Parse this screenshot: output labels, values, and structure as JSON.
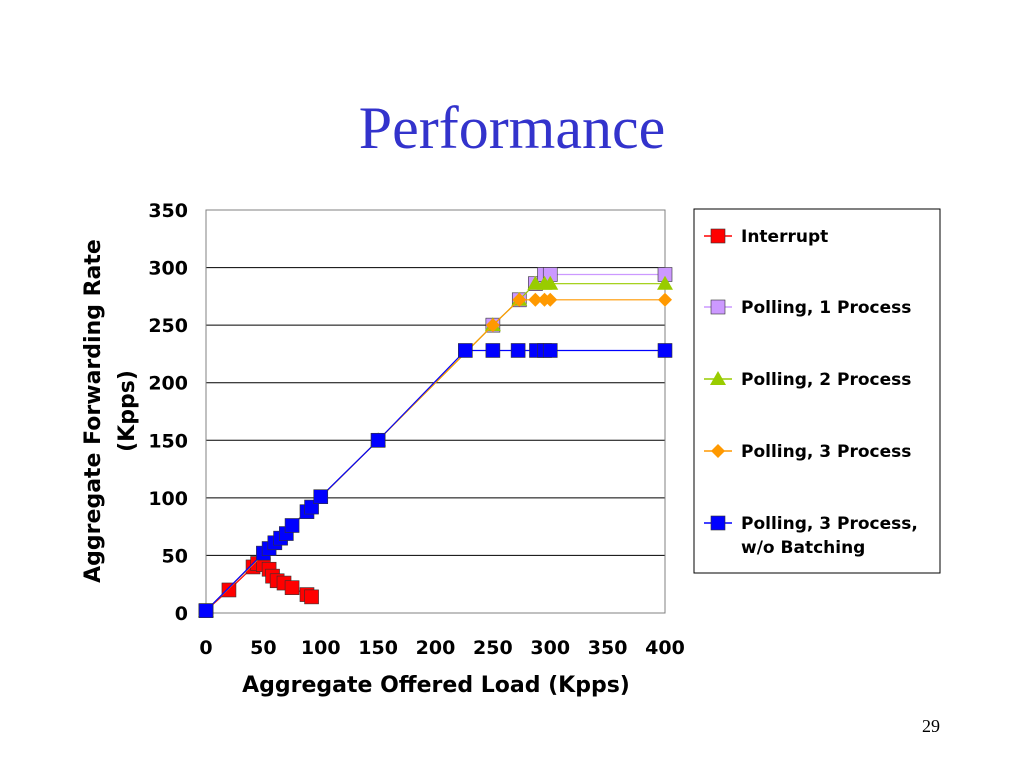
{
  "slide": {
    "title": "Performance",
    "page_number": "29"
  },
  "chart_data": {
    "type": "line",
    "xlabel": "Aggregate Offered Load (Kpps)",
    "ylabel_lines": [
      "Aggregate Forwarding Rate",
      "(Kpps)"
    ],
    "xlim": [
      0,
      400
    ],
    "ylim": [
      0,
      350
    ],
    "x_ticks": [
      0,
      50,
      100,
      150,
      200,
      250,
      300,
      350,
      400
    ],
    "y_ticks": [
      0,
      50,
      100,
      150,
      200,
      250,
      300,
      350
    ],
    "grid": "horizontal",
    "legend_position": "right",
    "series": [
      {
        "name": "Interrupt",
        "key": "interrupt",
        "color": "#ff0000",
        "marker": "square",
        "points": [
          [
            0,
            2
          ],
          [
            20,
            20
          ],
          [
            41,
            40
          ],
          [
            45,
            43
          ],
          [
            50,
            42
          ],
          [
            55,
            38
          ],
          [
            58,
            32
          ],
          [
            62,
            28
          ],
          [
            68,
            26
          ],
          [
            75,
            22
          ],
          [
            88,
            16
          ],
          [
            92,
            14
          ]
        ]
      },
      {
        "name": "Polling, 1 Process",
        "key": "polling-1",
        "color": "#cc99ff",
        "marker": "square",
        "points": [
          [
            0,
            2
          ],
          [
            150,
            150
          ],
          [
            250,
            250
          ],
          [
            273,
            272
          ],
          [
            287,
            286
          ],
          [
            295,
            294
          ],
          [
            300,
            294
          ],
          [
            400,
            294
          ]
        ]
      },
      {
        "name": "Polling, 2 Process",
        "key": "polling-2",
        "color": "#99cc00",
        "marker": "triangle",
        "points": [
          [
            0,
            2
          ],
          [
            150,
            150
          ],
          [
            250,
            250
          ],
          [
            273,
            272
          ],
          [
            287,
            286
          ],
          [
            295,
            286
          ],
          [
            300,
            286
          ],
          [
            400,
            286
          ]
        ]
      },
      {
        "name": "Polling, 3 Process",
        "key": "polling-3",
        "color": "#ff9900",
        "marker": "diamond",
        "points": [
          [
            0,
            2
          ],
          [
            150,
            150
          ],
          [
            250,
            250
          ],
          [
            273,
            272
          ],
          [
            287,
            272
          ],
          [
            295,
            272
          ],
          [
            300,
            272
          ],
          [
            400,
            272
          ]
        ]
      },
      {
        "name": "Polling, 3 Process, w/o Batching",
        "key": "polling-3-nobatch",
        "color": "#0000ff",
        "marker": "square",
        "legend_lines": [
          "Polling, 3 Process,",
          "w/o Batching"
        ],
        "points": [
          [
            0,
            2
          ],
          [
            50,
            52
          ],
          [
            55,
            56
          ],
          [
            60,
            61
          ],
          [
            65,
            65
          ],
          [
            70,
            69
          ],
          [
            75,
            76
          ],
          [
            88,
            88
          ],
          [
            92,
            92
          ],
          [
            100,
            101
          ],
          [
            150,
            150
          ],
          [
            226,
            228
          ],
          [
            250,
            228
          ],
          [
            272,
            228
          ],
          [
            288,
            228
          ],
          [
            295,
            228
          ],
          [
            300,
            228
          ],
          [
            400,
            228
          ]
        ]
      }
    ]
  }
}
